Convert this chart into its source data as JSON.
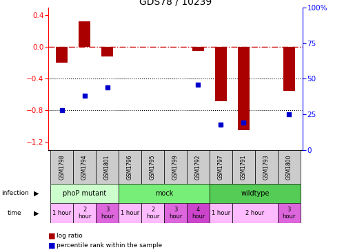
{
  "title": "GDS78 / 10239",
  "samples": [
    "GSM1798",
    "GSM1794",
    "GSM1801",
    "GSM1796",
    "GSM1795",
    "GSM1799",
    "GSM1792",
    "GSM1797",
    "GSM1791",
    "GSM1793",
    "GSM1800"
  ],
  "log_ratio": [
    -0.2,
    0.33,
    -0.12,
    0.0,
    0.0,
    0.0,
    -0.05,
    -0.68,
    -1.05,
    0.0,
    -0.55
  ],
  "percentile": [
    28,
    38,
    44,
    null,
    null,
    null,
    46,
    18,
    19,
    null,
    25
  ],
  "infection_groups": [
    {
      "label": "phoP mutant",
      "start": 0,
      "end": 3,
      "color": "#ccffcc"
    },
    {
      "label": "mock",
      "start": 3,
      "end": 7,
      "color": "#77ee77"
    },
    {
      "label": "wildtype",
      "start": 7,
      "end": 11,
      "color": "#55cc55"
    }
  ],
  "time_cells": [
    {
      "cols": [
        0
      ],
      "label": "1 hour",
      "color": "#ffbbff"
    },
    {
      "cols": [
        1
      ],
      "label": "2\nhour",
      "color": "#ffbbff"
    },
    {
      "cols": [
        2
      ],
      "label": "3\nhour",
      "color": "#dd66dd"
    },
    {
      "cols": [
        3
      ],
      "label": "1 hour",
      "color": "#ffbbff"
    },
    {
      "cols": [
        4
      ],
      "label": "2\nhour",
      "color": "#ffbbff"
    },
    {
      "cols": [
        5
      ],
      "label": "3\nhour",
      "color": "#dd66dd"
    },
    {
      "cols": [
        6
      ],
      "label": "4\nhour",
      "color": "#cc44cc"
    },
    {
      "cols": [
        7
      ],
      "label": "1 hour",
      "color": "#ffbbff"
    },
    {
      "cols": [
        8,
        9
      ],
      "label": "2 hour",
      "color": "#ffbbff"
    },
    {
      "cols": [
        10
      ],
      "label": "3\nhour",
      "color": "#dd66dd"
    }
  ],
  "ylim_left": [
    -1.3,
    0.5
  ],
  "ylim_right": [
    0,
    100
  ],
  "yticks_left": [
    -1.2,
    -0.8,
    -0.4,
    0.0,
    0.4
  ],
  "yticks_right": [
    0,
    25,
    50,
    75,
    100
  ],
  "bar_color": "#aa0000",
  "dot_color": "#0000cc",
  "ref_line_color": "#cc0000",
  "grid_color": "#000000",
  "background_color": "#ffffff",
  "sample_box_color": "#cccccc"
}
